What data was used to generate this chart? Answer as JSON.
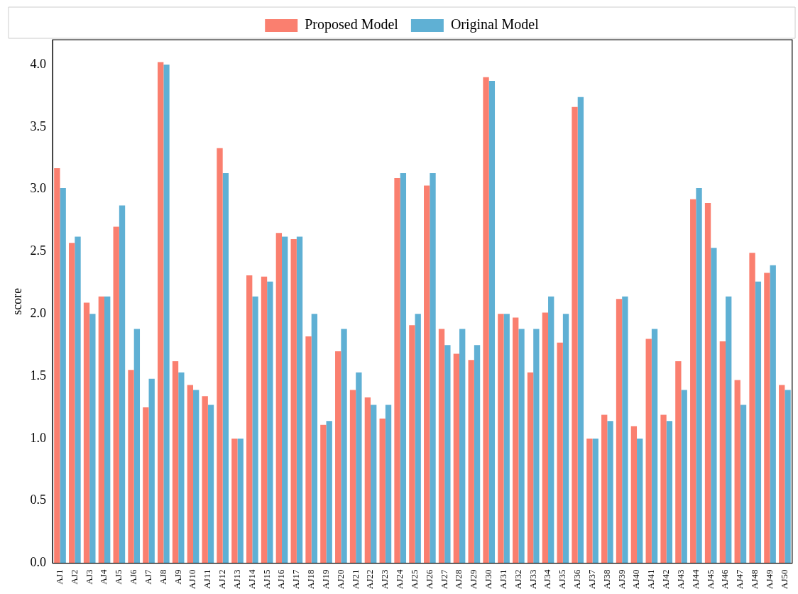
{
  "chart_data": {
    "type": "bar",
    "ylabel": "score",
    "categories": [
      "AJ1",
      "AJ2",
      "AJ3",
      "AJ4",
      "AJ5",
      "AJ6",
      "AJ7",
      "AJ8",
      "AJ9",
      "AJ10",
      "AJ11",
      "AJ12",
      "AJ13",
      "AJ14",
      "AJ15",
      "AJ16",
      "AJ17",
      "AJ18",
      "AJ19",
      "AJ20",
      "AJ21",
      "AJ22",
      "AJ23",
      "AJ24",
      "AJ25",
      "AJ26",
      "AJ27",
      "AJ28",
      "AJ29",
      "AJ30",
      "AJ31",
      "AJ32",
      "AJ33",
      "AJ34",
      "AJ35",
      "AJ36",
      "AJ37",
      "AJ38",
      "AJ39",
      "AJ40",
      "AJ41",
      "AJ42",
      "AJ43",
      "AJ44",
      "AJ45",
      "AJ46",
      "AJ47",
      "AJ48",
      "AJ49",
      "AJ50"
    ],
    "series": [
      {
        "name": "Proposed Model",
        "color": "#fa7f6f",
        "values": [
          3.17,
          2.57,
          2.09,
          2.14,
          2.7,
          1.55,
          1.25,
          4.02,
          1.62,
          1.43,
          1.34,
          3.33,
          1.0,
          2.31,
          2.3,
          2.65,
          2.6,
          1.82,
          1.11,
          1.7,
          1.39,
          1.33,
          1.16,
          3.09,
          1.91,
          3.03,
          1.88,
          1.68,
          1.63,
          3.9,
          2.0,
          1.97,
          1.53,
          2.01,
          1.77,
          3.66,
          1.0,
          1.19,
          2.12,
          1.1,
          1.8,
          1.19,
          1.62,
          2.92,
          2.89,
          1.78,
          1.47,
          2.49,
          2.33,
          1.43
        ]
      },
      {
        "name": "Original Model",
        "color": "#5fb0d4",
        "values": [
          3.01,
          2.62,
          2.0,
          2.14,
          2.87,
          1.88,
          1.48,
          4.0,
          1.53,
          1.39,
          1.27,
          3.13,
          1.0,
          2.14,
          2.26,
          2.62,
          2.62,
          2.0,
          1.14,
          1.88,
          1.53,
          1.27,
          1.27,
          3.13,
          2.0,
          3.13,
          1.75,
          1.88,
          1.75,
          3.87,
          2.0,
          1.88,
          1.88,
          2.14,
          2.0,
          3.74,
          1.0,
          1.14,
          2.14,
          1.0,
          1.88,
          1.14,
          1.39,
          3.01,
          2.53,
          2.14,
          1.27,
          2.26,
          2.39,
          1.39
        ]
      }
    ],
    "ylim": [
      0,
      4.2
    ],
    "yticks": [
      {
        "value": 0,
        "label": "0.0"
      },
      {
        "value": 0.5,
        "label": "0.5"
      },
      {
        "value": 1,
        "label": "1.0"
      },
      {
        "value": 1.5,
        "label": "1.5"
      },
      {
        "value": 2,
        "label": "2.0"
      },
      {
        "value": 2.5,
        "label": "2.5"
      },
      {
        "value": 3,
        "label": "3.0"
      },
      {
        "value": 3.5,
        "label": "3.5"
      },
      {
        "value": 4,
        "label": "4.0"
      }
    ],
    "legend": "top"
  }
}
